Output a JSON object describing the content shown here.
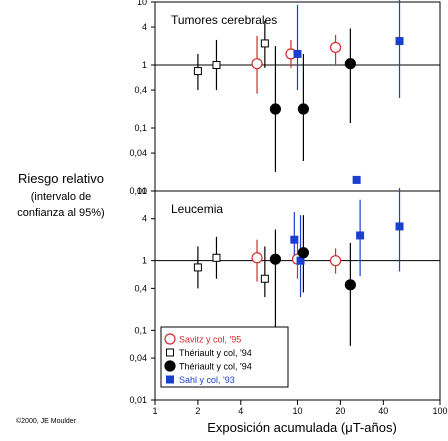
{
  "y_title": [
    "Riesgo relativo",
    "(intervalo de",
    "confianza al 95%)"
  ],
  "copyright": "©2000, JE Moulder",
  "colors": {
    "savitz": "#d42a2a",
    "theriault": "#000000",
    "sahl": "#1a3fd0",
    "axis": "#000000"
  },
  "chart_data": {
    "type": "scatter",
    "x_scale": "log",
    "y_scale": "log",
    "xlabel": "Exposición acumulada (μT-años)",
    "xlim": [
      1,
      100
    ],
    "ylim": [
      0.01,
      10
    ],
    "x_ticks": [
      1,
      2,
      4,
      10,
      20,
      40,
      100
    ],
    "x_tick_labels": [
      "1",
      "2",
      "4",
      "10",
      "20",
      "40",
      "100"
    ],
    "y_ticks": [
      0.01,
      0.04,
      0.1,
      0.4,
      1,
      4,
      10
    ],
    "y_tick_labels": [
      "0,01",
      "0,04",
      "0,1",
      "0,4",
      "1",
      "4",
      "10"
    ],
    "reference_line_y": 1,
    "legend": {
      "placement": "bottom-left",
      "entries": [
        {
          "label": "Savitz y col, '95",
          "series": 0
        },
        {
          "label": "Thériault y col, '94",
          "series": 1
        },
        {
          "label": "Thériault y col, '94",
          "series": 2
        },
        {
          "label": "Sahl y col, '93",
          "series": 3
        }
      ]
    },
    "series_styles": [
      {
        "marker": "circle",
        "filled": false,
        "color": "#d42a2a"
      },
      {
        "marker": "square",
        "filled": false,
        "color": "#000000"
      },
      {
        "marker": "circle",
        "filled": true,
        "color": "#000000"
      },
      {
        "marker": "square",
        "filled": true,
        "color": "#1a3fd0"
      }
    ],
    "panels": [
      {
        "title": "Tumores cerebrales",
        "series": [
          {
            "points": [
              {
                "x": 5.2,
                "y": 1.05,
                "lo": 0.35,
                "hi": 2.9
              },
              {
                "x": 9.0,
                "y": 1.5,
                "lo": 0.9,
                "hi": 2.5
              },
              {
                "x": 18.5,
                "y": 1.9,
                "lo": 1.0,
                "hi": 3.0
              }
            ]
          },
          {
            "points": [
              {
                "x": 2.0,
                "y": 0.8,
                "lo": 0.4,
                "hi": 1.5
              },
              {
                "x": 2.7,
                "y": 1.0,
                "lo": 0.4,
                "hi": 2.5
              },
              {
                "x": 5.9,
                "y": 2.2,
                "lo": 0.9,
                "hi": 5.0
              }
            ]
          },
          {
            "points": [
              {
                "x": 7.0,
                "y": 0.2,
                "lo": 0.02,
                "hi": 2.0
              },
              {
                "x": 11.0,
                "y": 0.2,
                "lo": 0.03,
                "hi": 1.5
              },
              {
                "x": 23.5,
                "y": 1.05,
                "lo": 0.12,
                "hi": 3.8
              }
            ]
          },
          {
            "points": [
              {
                "x": 10.0,
                "y": 1.5,
                "lo": 0.4,
                "hi": 9.0
              },
              {
                "x": 26.0,
                "y": 0.015,
                "lo": null,
                "hi": null
              },
              {
                "x": 52.0,
                "y": 2.4,
                "lo": 0.3,
                "hi": 13.0
              }
            ]
          }
        ]
      },
      {
        "title": "Leucemia",
        "series": [
          {
            "points": [
              {
                "x": 5.2,
                "y": 1.1,
                "lo": 0.5,
                "hi": 2.0
              },
              {
                "x": 10.0,
                "y": 1.05,
                "lo": 0.55,
                "hi": 2.0
              },
              {
                "x": 18.5,
                "y": 1.0,
                "lo": 0.65,
                "hi": 1.5
              }
            ]
          },
          {
            "points": [
              {
                "x": 2.0,
                "y": 0.8,
                "lo": 0.4,
                "hi": 1.6
              },
              {
                "x": 2.7,
                "y": 1.1,
                "lo": 0.55,
                "hi": 2.2
              },
              {
                "x": 5.9,
                "y": 0.55,
                "lo": 0.3,
                "hi": 1.6
              }
            ]
          },
          {
            "points": [
              {
                "x": 7.0,
                "y": 1.05,
                "lo": 0.06,
                "hi": 2.8
              },
              {
                "x": 11.0,
                "y": 1.3,
                "lo": 0.35,
                "hi": 4.5
              },
              {
                "x": 23.5,
                "y": 0.45,
                "lo": 0.06,
                "hi": 1.8
              }
            ]
          },
          {
            "points": [
              {
                "x": 9.5,
                "y": 2.0,
                "lo": 0.9,
                "hi": 5.0
              },
              {
                "x": 10.5,
                "y": 1.0,
                "lo": 0.3,
                "hi": 4.5
              },
              {
                "x": 27.5,
                "y": 2.3,
                "lo": 0.6,
                "hi": 7.5
              },
              {
                "x": 52.0,
                "y": 3.1,
                "lo": 0.7,
                "hi": 11.0
              }
            ]
          }
        ]
      }
    ]
  }
}
